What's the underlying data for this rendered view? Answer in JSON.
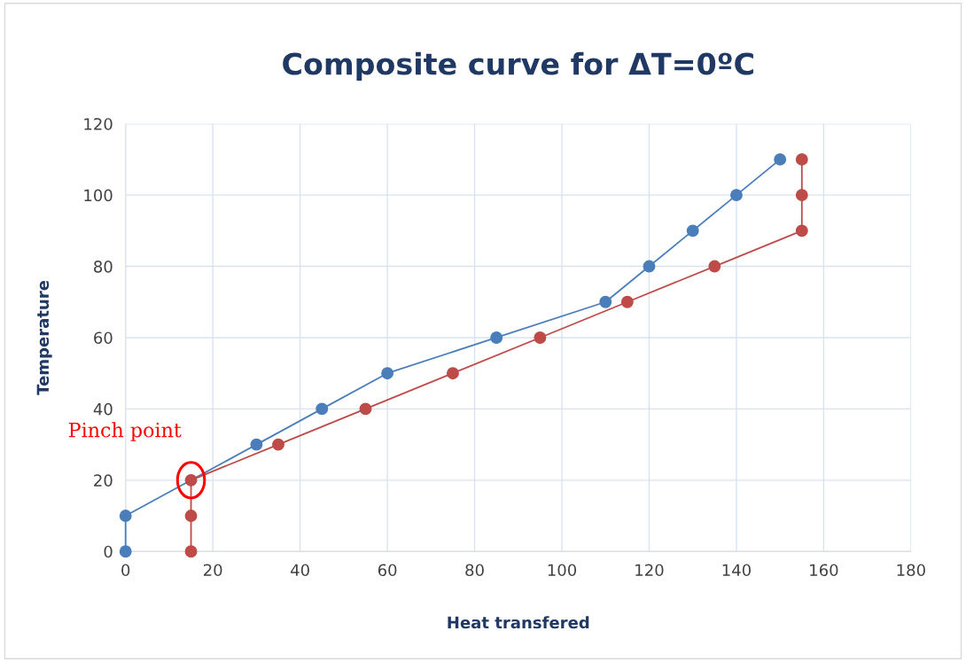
{
  "chart_data": {
    "type": "line",
    "title": "Composite curve for ΔT=0ºC",
    "xlabel": "Heat transfered",
    "ylabel": "Temperature",
    "xlim": [
      0,
      180
    ],
    "xticks": [
      0,
      20,
      40,
      60,
      80,
      100,
      120,
      140,
      160,
      180
    ],
    "ylim": [
      0,
      120
    ],
    "yticks": [
      0,
      20,
      40,
      60,
      80,
      100,
      120
    ],
    "grid": true,
    "marker": "circle",
    "line_style": "solid",
    "series": [
      {
        "color": "#4a7ebb",
        "x": [
          0,
          0,
          30,
          45,
          60,
          85,
          110,
          120,
          130,
          140,
          150
        ],
        "values": [
          0,
          10,
          30,
          40,
          50,
          60,
          70,
          80,
          90,
          100,
          110
        ]
      },
      {
        "color": "#be4b48",
        "x": [
          15,
          15,
          15,
          35,
          55,
          75,
          95,
          115,
          135,
          155,
          155,
          155
        ],
        "values": [
          0,
          10,
          20,
          30,
          40,
          50,
          60,
          70,
          80,
          90,
          100,
          110
        ]
      }
    ],
    "annotations": [
      {
        "text": "Pinch point",
        "x": 15,
        "y": 20
      }
    ]
  }
}
